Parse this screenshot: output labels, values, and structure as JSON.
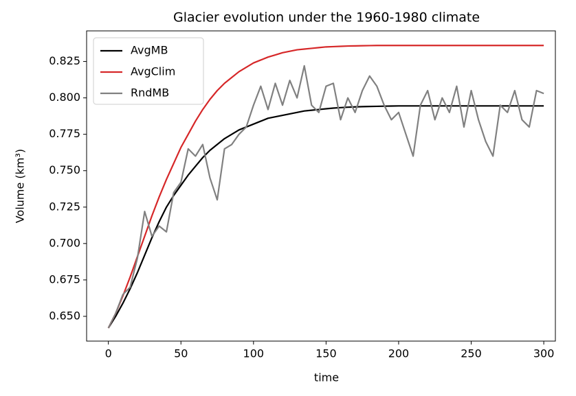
{
  "chart_data": {
    "type": "line",
    "title": "Glacier evolution under the 1960-1980 climate",
    "xlabel": "time",
    "ylabel": "Volume (km³)",
    "x": [
      0,
      5,
      10,
      15,
      20,
      25,
      30,
      35,
      40,
      45,
      50,
      55,
      60,
      65,
      70,
      75,
      80,
      85,
      90,
      95,
      100,
      105,
      110,
      115,
      120,
      125,
      130,
      135,
      140,
      145,
      150,
      155,
      160,
      165,
      170,
      175,
      180,
      185,
      190,
      195,
      200,
      205,
      210,
      215,
      220,
      225,
      230,
      235,
      240,
      245,
      250,
      255,
      260,
      265,
      270,
      275,
      280,
      285,
      290,
      295,
      300
    ],
    "xlim": [
      -15,
      308
    ],
    "ylim": [
      0.633,
      0.846
    ],
    "xticks": [
      0,
      50,
      100,
      150,
      200,
      250,
      300
    ],
    "yticks": [
      {
        "value": 0.65,
        "label": "0.650"
      },
      0.675,
      {
        "value": 0.7,
        "label": "0.700"
      },
      0.725,
      {
        "value": 0.75,
        "label": "0.750"
      },
      0.775,
      {
        "value": 0.8,
        "label": "0.800"
      },
      0.825
    ],
    "legend": "upper left",
    "series": [
      {
        "name": "AvgMB",
        "color": "#000000",
        "values": [
          0.642,
          0.65,
          0.659,
          0.669,
          0.68,
          0.692,
          0.704,
          0.715,
          0.725,
          0.733,
          0.74,
          0.747,
          0.753,
          0.759,
          0.764,
          0.768,
          0.772,
          0.775,
          0.778,
          0.78,
          0.782,
          0.784,
          0.786,
          0.787,
          0.788,
          0.789,
          0.79,
          0.791,
          0.7915,
          0.792,
          0.7925,
          0.793,
          0.7933,
          0.7936,
          0.7938,
          0.794,
          0.7941,
          0.7942,
          0.7943,
          0.7944,
          0.7945,
          0.7945,
          0.7945,
          0.7945,
          0.7945,
          0.7945,
          0.7945,
          0.7945,
          0.7945,
          0.7945,
          0.7945,
          0.7945,
          0.7945,
          0.7945,
          0.7945,
          0.7945,
          0.7945,
          0.7945,
          0.7945,
          0.7945,
          0.7945
        ]
      },
      {
        "name": "AvgClim",
        "color": "#d62728",
        "values": [
          0.642,
          0.652,
          0.664,
          0.677,
          0.691,
          0.705,
          0.719,
          0.732,
          0.744,
          0.755,
          0.766,
          0.775,
          0.784,
          0.792,
          0.799,
          0.805,
          0.81,
          0.814,
          0.818,
          0.821,
          0.824,
          0.826,
          0.828,
          0.8295,
          0.831,
          0.832,
          0.833,
          0.8335,
          0.834,
          0.8345,
          0.835,
          0.8352,
          0.8354,
          0.8356,
          0.8357,
          0.8358,
          0.8359,
          0.836,
          0.836,
          0.836,
          0.836,
          0.836,
          0.836,
          0.836,
          0.836,
          0.836,
          0.836,
          0.836,
          0.836,
          0.836,
          0.836,
          0.836,
          0.836,
          0.836,
          0.836,
          0.836,
          0.836,
          0.836,
          0.836,
          0.836,
          0.836
        ]
      },
      {
        "name": "RndMB",
        "color": "#808080",
        "values": [
          0.642,
          0.652,
          0.665,
          0.67,
          0.69,
          0.722,
          0.705,
          0.712,
          0.708,
          0.735,
          0.742,
          0.765,
          0.76,
          0.768,
          0.745,
          0.73,
          0.765,
          0.768,
          0.775,
          0.78,
          0.795,
          0.808,
          0.792,
          0.81,
          0.795,
          0.812,
          0.8,
          0.822,
          0.795,
          0.79,
          0.808,
          0.81,
          0.785,
          0.8,
          0.79,
          0.805,
          0.815,
          0.808,
          0.795,
          0.785,
          0.79,
          0.775,
          0.76,
          0.795,
          0.805,
          0.785,
          0.8,
          0.79,
          0.808,
          0.78,
          0.805,
          0.785,
          0.77,
          0.76,
          0.795,
          0.79,
          0.805,
          0.785,
          0.78,
          0.805,
          0.803
        ]
      }
    ]
  }
}
